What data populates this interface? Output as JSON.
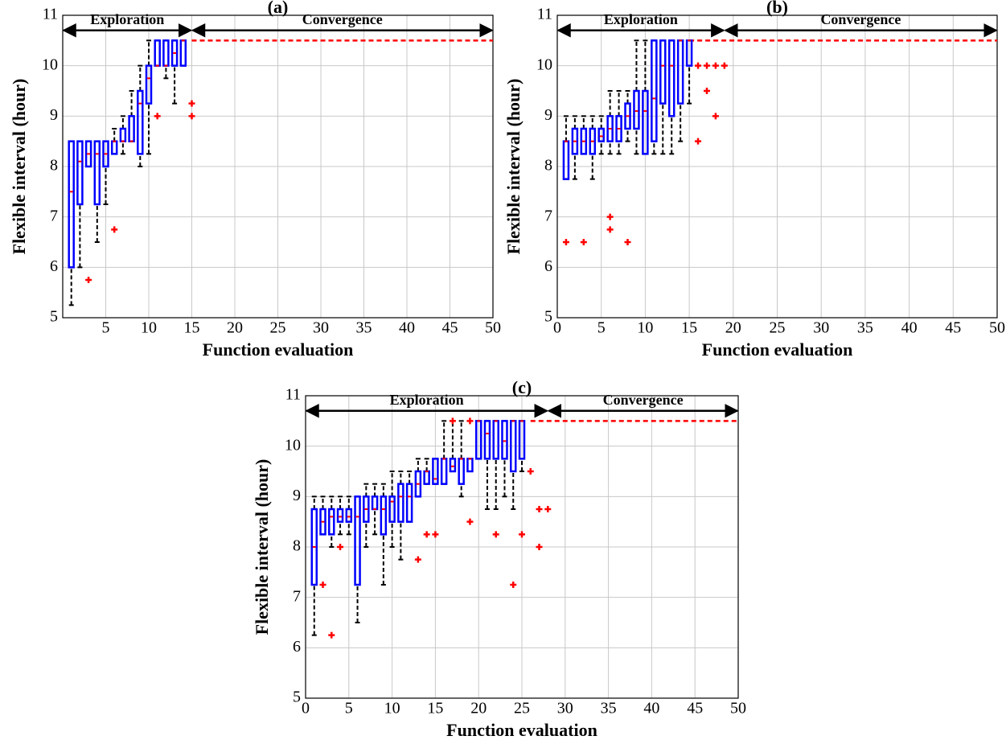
{
  "chart_data": [
    {
      "type": "box",
      "title": "(a)",
      "xlabel": "Function evaluation",
      "ylabel": "Flexible interval (hour)",
      "xlim": [
        0,
        50
      ],
      "ylim": [
        5,
        11
      ],
      "xticks": [
        5,
        10,
        15,
        20,
        25,
        30,
        35,
        40,
        45,
        50
      ],
      "yticks": [
        5,
        6,
        7,
        8,
        9,
        10,
        11
      ],
      "grid": true,
      "box_color": "#0000ff",
      "median_color": "#ff0000",
      "whisker_color": "#000000",
      "outlier_color": "#ff0000",
      "boxes": {
        "x": [
          1,
          2,
          3,
          4,
          5,
          6,
          7,
          8,
          9,
          10,
          11,
          12,
          13,
          14
        ],
        "whisker_low": [
          5.25,
          6,
          8,
          6.5,
          7.25,
          8.25,
          8.25,
          8.5,
          8,
          8.25,
          10,
          9.75,
          9.25,
          10
        ],
        "q1": [
          6,
          7.25,
          8,
          7.25,
          8,
          8.25,
          8.5,
          8.5,
          8.25,
          9.25,
          10,
          10,
          10,
          10
        ],
        "median": [
          7.5,
          8.1,
          8.25,
          8.25,
          8.25,
          8.5,
          8.5,
          8.5,
          9.25,
          9.75,
          10,
          10,
          10.25,
          10.5
        ],
        "q3": [
          8.5,
          8.5,
          8.5,
          8.5,
          8.5,
          8.5,
          8.75,
          9,
          9.5,
          10,
          10.5,
          10.5,
          10.5,
          10.5
        ],
        "whisker_high": [
          8.5,
          8.5,
          8.5,
          8.5,
          8.5,
          8.75,
          9,
          9.5,
          10,
          10.5,
          10.5,
          10.5,
          10.5,
          10.5
        ]
      },
      "outliers": {
        "x": [
          3,
          6,
          11,
          15,
          15
        ],
        "y": [
          5.75,
          6.75,
          9,
          9.25,
          9
        ]
      },
      "reference_line": {
        "y": 10.5,
        "x_start": 15,
        "x_end": 50,
        "color": "#ff0000"
      },
      "phases": [
        {
          "label": "Exploration",
          "x_start": 0,
          "x_end": 15,
          "y": 10.7
        },
        {
          "label": "Convergence",
          "x_start": 15,
          "x_end": 50,
          "y": 10.7
        }
      ]
    },
    {
      "type": "box",
      "title": "(b)",
      "xlabel": "Function evaluation",
      "ylabel": "Flexible interval (hour)",
      "xlim": [
        0,
        50
      ],
      "ylim": [
        5,
        11
      ],
      "xticks": [
        0,
        5,
        10,
        15,
        20,
        25,
        30,
        35,
        40,
        45,
        50
      ],
      "yticks": [
        5,
        6,
        7,
        8,
        9,
        10,
        11
      ],
      "grid": true,
      "box_color": "#0000ff",
      "median_color": "#ff0000",
      "whisker_color": "#000000",
      "outlier_color": "#ff0000",
      "boxes": {
        "x": [
          1,
          2,
          3,
          4,
          5,
          6,
          7,
          8,
          9,
          10,
          11,
          12,
          13,
          14,
          15
        ],
        "whisker_low": [
          7.75,
          7.75,
          8.25,
          7.75,
          8.25,
          8.25,
          8.25,
          8.5,
          8.25,
          8.25,
          8.25,
          8.25,
          8.25,
          8.5,
          9.25
        ],
        "q1": [
          7.75,
          8.25,
          8.25,
          8.25,
          8.5,
          8.5,
          8.5,
          8.75,
          8.75,
          8.25,
          8.5,
          9.25,
          9,
          9.25,
          10
        ],
        "median": [
          8.5,
          8.5,
          8.5,
          8.5,
          8.6,
          8.75,
          8.75,
          9,
          9.1,
          9.1,
          9.35,
          10,
          10,
          10.5,
          10.5
        ],
        "q3": [
          8.5,
          8.75,
          8.75,
          8.75,
          8.75,
          9,
          9,
          9.25,
          9.5,
          9.5,
          10.5,
          10.5,
          10.5,
          10.5,
          10.5
        ],
        "whisker_high": [
          9,
          9,
          9,
          9,
          9,
          9.5,
          9.5,
          9.5,
          10.5,
          10.5,
          10.5,
          10.5,
          10.5,
          10.5,
          10.5
        ]
      },
      "outliers": {
        "x": [
          1,
          3,
          6,
          6,
          8,
          16,
          16,
          17,
          17,
          18,
          18,
          19
        ],
        "y": [
          6.5,
          6.5,
          7,
          6.75,
          6.5,
          10,
          8.5,
          10,
          9.5,
          10,
          9,
          10
        ]
      },
      "reference_line": {
        "y": 10.5,
        "x_start": 15,
        "x_end": 50,
        "color": "#ff0000"
      },
      "phases": [
        {
          "label": "Exploration",
          "x_start": 0,
          "x_end": 19,
          "y": 10.7
        },
        {
          "label": "Convergence",
          "x_start": 19,
          "x_end": 50,
          "y": 10.7
        }
      ]
    },
    {
      "type": "box",
      "title": "(c)",
      "xlabel": "Function evaluation",
      "ylabel": "Flexible interval (hour)",
      "xlim": [
        0,
        50
      ],
      "ylim": [
        5,
        11
      ],
      "xticks": [
        0,
        5,
        10,
        15,
        20,
        25,
        30,
        35,
        40,
        45,
        50
      ],
      "yticks": [
        5,
        6,
        7,
        8,
        9,
        10,
        11
      ],
      "grid": true,
      "box_color": "#0000ff",
      "median_color": "#ff0000",
      "whisker_color": "#000000",
      "outlier_color": "#ff0000",
      "boxes": {
        "x": [
          1,
          2,
          3,
          4,
          5,
          6,
          7,
          8,
          9,
          10,
          11,
          12,
          13,
          14,
          15,
          16,
          17,
          18,
          19,
          20,
          21,
          22,
          23,
          24,
          25
        ],
        "whisker_low": [
          6.25,
          8.25,
          8,
          8.25,
          8.25,
          6.5,
          8,
          8.25,
          7.25,
          8,
          7.75,
          8.5,
          9,
          9.25,
          9.25,
          9.25,
          9.5,
          9,
          9.5,
          9.75,
          8.75,
          8.75,
          9,
          8.75,
          9.5
        ],
        "q1": [
          7.25,
          8.25,
          8.25,
          8.5,
          8.5,
          7.25,
          8.5,
          8.75,
          8.25,
          8.5,
          8.5,
          8.5,
          9,
          9.25,
          9.25,
          9.25,
          9.5,
          9.25,
          9.5,
          9.75,
          9.75,
          9.75,
          9.75,
          9.5,
          9.75
        ],
        "median": [
          8,
          8.5,
          8.6,
          8.6,
          8.6,
          8.6,
          8.75,
          8.75,
          8.75,
          8.9,
          9,
          9,
          9.25,
          9.5,
          9.35,
          9.75,
          9.6,
          9.75,
          9.75,
          10.5,
          10.25,
          10.5,
          10.1,
          10.5,
          10.5
        ],
        "q3": [
          8.75,
          8.75,
          8.75,
          8.75,
          8.75,
          9,
          9,
          9,
          9,
          9,
          9.25,
          9.25,
          9.5,
          9.5,
          9.75,
          9.75,
          9.75,
          9.75,
          9.75,
          10.5,
          10.5,
          10.5,
          10.5,
          10.5,
          10.5
        ],
        "whisker_high": [
          9,
          9,
          9,
          9,
          9,
          9,
          9.25,
          9.25,
          9.25,
          9.5,
          9.5,
          9.5,
          9.75,
          9.75,
          9.75,
          10.5,
          10.5,
          10.5,
          9.75,
          10.5,
          10.5,
          10.5,
          10.5,
          10.5,
          10.5
        ]
      },
      "outliers": {
        "x": [
          2,
          3,
          4,
          13,
          14,
          15,
          17,
          19,
          19,
          22,
          24,
          25,
          26,
          27,
          27,
          28
        ],
        "y": [
          7.25,
          6.25,
          8,
          7.75,
          8.25,
          8.25,
          10.5,
          8.5,
          10.5,
          8.25,
          7.25,
          8.25,
          9.5,
          8.75,
          8,
          8.75
        ]
      },
      "reference_line": {
        "y": 10.5,
        "x_start": 26,
        "x_end": 50,
        "color": "#ff0000"
      },
      "phases": [
        {
          "label": "Exploration",
          "x_start": 0,
          "x_end": 28,
          "y": 10.7
        },
        {
          "label": "Convergence",
          "x_start": 28,
          "x_end": 50,
          "y": 10.7
        }
      ]
    }
  ]
}
